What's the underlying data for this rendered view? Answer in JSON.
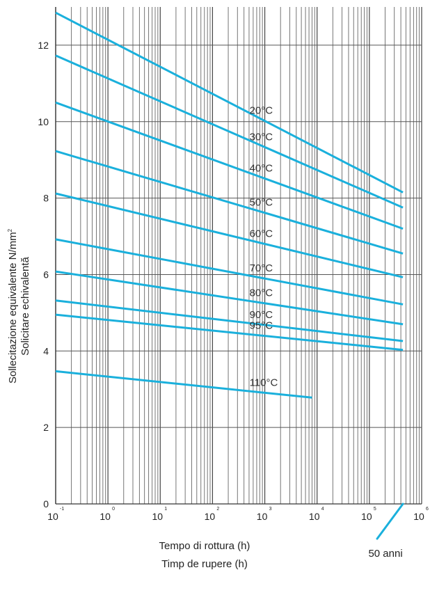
{
  "chart_data": {
    "type": "line",
    "title": "",
    "ylabel_lines": [
      "Sollecitazione equivalente N/mm",
      "Solicitare echivalentă"
    ],
    "ylabel_sup": "2",
    "xlabel_lines": [
      "Tempo di rottura (h)",
      "Timp de rupere (h)"
    ],
    "x_scale": "log",
    "xlim": [
      0.1,
      1000000
    ],
    "ylim": [
      0,
      13
    ],
    "y_ticks": [
      0,
      2,
      4,
      6,
      8,
      10,
      12
    ],
    "y_tick_labels": [
      "0",
      "2",
      "4",
      "6",
      "8",
      "10",
      "12"
    ],
    "x_ticks": [
      0.1,
      1,
      10,
      100,
      1000,
      10000,
      100000,
      1000000
    ],
    "x_tick_bases": [
      "10",
      "10",
      "10",
      "10",
      "10",
      "10",
      "10",
      "10"
    ],
    "x_tick_exponents": [
      "-1",
      "0",
      "1",
      "2",
      "3",
      "4",
      "5",
      "6"
    ],
    "grid": true,
    "annotation": {
      "text": "50 anni",
      "x": 438000
    },
    "series_color": "#1ab0dc",
    "series": [
      {
        "name": "20°C",
        "x": [
          0.1,
          438000
        ],
        "y": [
          12.85,
          8.15
        ]
      },
      {
        "name": "30°C",
        "x": [
          0.1,
          438000
        ],
        "y": [
          11.73,
          7.75
        ]
      },
      {
        "name": "40°C",
        "x": [
          0.1,
          438000
        ],
        "y": [
          10.5,
          7.2
        ]
      },
      {
        "name": "50°C",
        "x": [
          0.1,
          438000
        ],
        "y": [
          9.23,
          6.55
        ]
      },
      {
        "name": "60°C",
        "x": [
          0.1,
          438000
        ],
        "y": [
          8.12,
          5.93
        ]
      },
      {
        "name": "70°C",
        "x": [
          0.1,
          438000
        ],
        "y": [
          6.92,
          5.22
        ]
      },
      {
        "name": "80°C",
        "x": [
          0.1,
          438000
        ],
        "y": [
          6.08,
          4.7
        ]
      },
      {
        "name": "90°C",
        "x": [
          0.1,
          438000
        ],
        "y": [
          5.32,
          4.26
        ]
      },
      {
        "name": "95°C",
        "x": [
          0.1,
          438000
        ],
        "y": [
          4.95,
          4.03
        ]
      },
      {
        "name": "110°C",
        "x": [
          0.1,
          8000
        ],
        "y": [
          3.47,
          2.78
        ]
      }
    ]
  }
}
